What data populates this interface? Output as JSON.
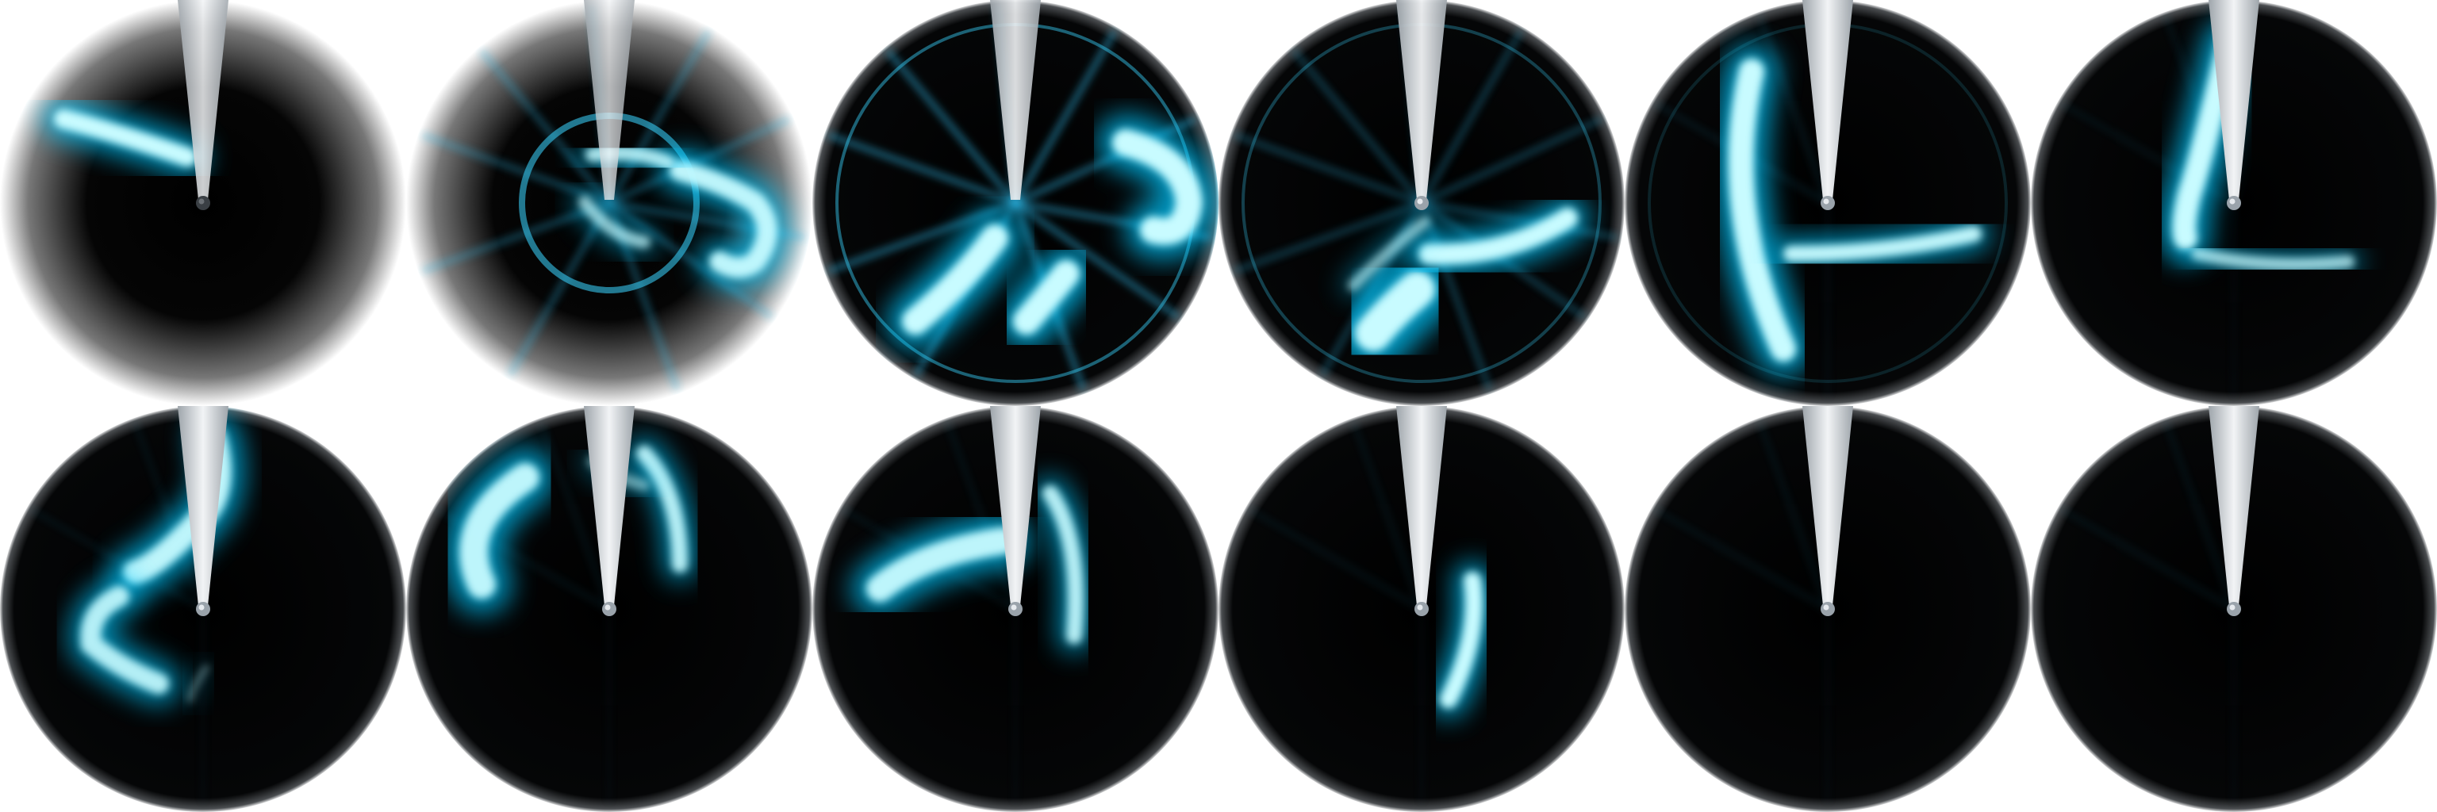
{
  "sprite_sheet": {
    "layout": {
      "columns": 6,
      "rows": 2
    },
    "palette": {
      "background": "#ffffff",
      "disc": "#000000",
      "glow_outer": "#00c8ff",
      "glow_core": "#c8fbff",
      "pointer": "#f2f4f6",
      "hub": "#9aa3ab"
    },
    "frames": [
      {
        "name": "frame-01",
        "halo": 0.95,
        "ring": 0.0,
        "rays": 0.0,
        "pointer": 0.85,
        "hub": "dark"
      },
      {
        "name": "frame-02",
        "halo": 0.9,
        "ring": 1.0,
        "rays": 0.7,
        "pointer": 0.75,
        "hub": "none"
      },
      {
        "name": "frame-03",
        "halo": 0.0,
        "ring": 0.8,
        "rays": 1.0,
        "pointer": 0.9,
        "hub": "none"
      },
      {
        "name": "frame-04",
        "halo": 0.0,
        "ring": 0.5,
        "rays": 0.6,
        "pointer": 0.95,
        "hub": "light"
      },
      {
        "name": "frame-05",
        "halo": 0.0,
        "ring": 0.25,
        "rays": 0.2,
        "pointer": 1.0,
        "hub": "light"
      },
      {
        "name": "frame-06",
        "halo": 0.0,
        "ring": 0.0,
        "rays": 0.15,
        "pointer": 1.0,
        "hub": "light"
      },
      {
        "name": "frame-07",
        "halo": 0.0,
        "ring": 0.0,
        "rays": 0.15,
        "pointer": 1.0,
        "hub": "light"
      },
      {
        "name": "frame-08",
        "halo": 0.0,
        "ring": 0.0,
        "rays": 0.15,
        "pointer": 1.0,
        "hub": "light"
      },
      {
        "name": "frame-09",
        "halo": 0.0,
        "ring": 0.0,
        "rays": 0.15,
        "pointer": 1.0,
        "hub": "light"
      },
      {
        "name": "frame-10",
        "halo": 0.0,
        "ring": 0.0,
        "rays": 0.15,
        "pointer": 1.0,
        "hub": "light"
      },
      {
        "name": "frame-11",
        "halo": 0.0,
        "ring": 0.0,
        "rays": 0.15,
        "pointer": 1.0,
        "hub": "light"
      },
      {
        "name": "frame-12",
        "halo": 0.0,
        "ring": 0.0,
        "rays": 0.15,
        "pointer": 1.0,
        "hub": "light"
      }
    ]
  }
}
